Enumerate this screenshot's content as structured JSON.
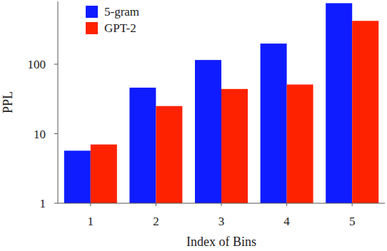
{
  "chart_data": {
    "type": "bar",
    "log": "y",
    "x_label": "Index of Bins",
    "y_label": "PPL",
    "categories": [
      "1",
      "2",
      "3",
      "4",
      "5"
    ],
    "series": [
      {
        "name": "5-gram",
        "color": "#0f1cff",
        "values": [
          5.7,
          46,
          115,
          198,
          755
        ]
      },
      {
        "name": "GPT-2",
        "color": "#ff2200",
        "values": [
          7.0,
          25,
          44,
          51,
          420
        ]
      }
    ],
    "ylim": [
      1,
      800
    ],
    "yticks": [
      1,
      10,
      100
    ],
    "grid": false,
    "legend": "upper left"
  }
}
